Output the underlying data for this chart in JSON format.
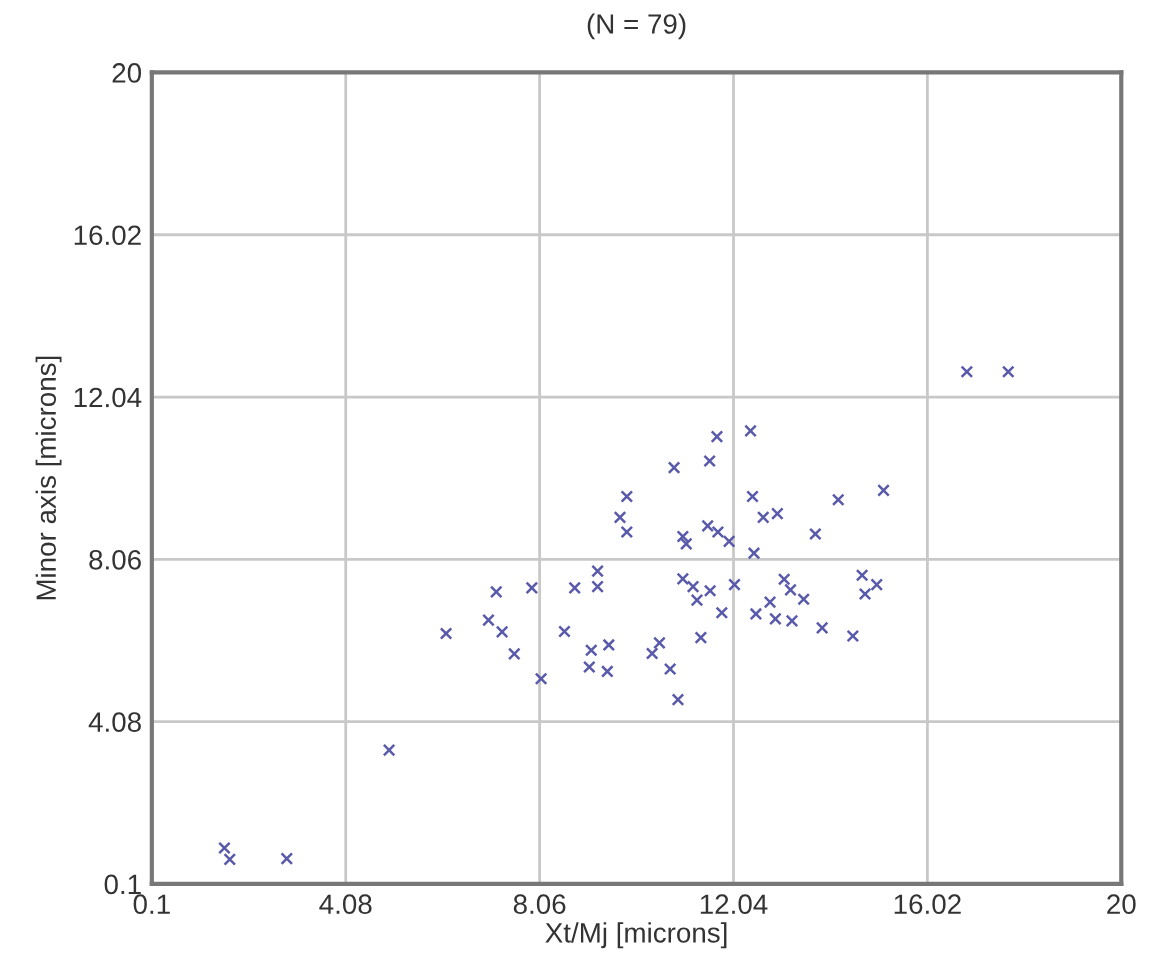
{
  "chart_data": {
    "type": "scatter",
    "title": "(N = 79)",
    "xlabel": "Xt/Mj [microns]",
    "ylabel": "Minor axis [microns]",
    "xlim": [
      0.1,
      20
    ],
    "ylim": [
      0.1,
      20
    ],
    "xticks": [
      0.1,
      4.08,
      8.06,
      12.04,
      16.02,
      20
    ],
    "yticks": [
      0.1,
      4.08,
      8.06,
      12.04,
      16.02,
      20
    ],
    "grid": true,
    "marker": "cross",
    "series": [
      {
        "color": "#5a5aaa",
        "x": [
          1.59,
          1.7,
          2.87,
          4.97,
          6.14,
          7.17,
          7.9,
          7.01,
          7.29,
          7.54,
          8.09,
          8.57,
          8.78,
          9.25,
          9.25,
          9.12,
          9.48,
          9.08,
          9.45,
          11.7,
          12.39,
          10.82,
          11.55,
          9.85,
          9.71,
          9.85,
          11.0,
          11.07,
          11.51,
          11.72,
          11.95,
          12.43,
          12.65,
          12.94,
          14.19,
          15.12,
          13.72,
          12.46,
          11.0,
          11.21,
          11.56,
          11.29,
          12.06,
          11.8,
          11.37,
          12.5,
          12.79,
          12.9,
          13.24,
          13.08,
          13.21,
          13.48,
          13.86,
          14.49,
          14.68,
          14.74,
          14.98,
          10.52,
          10.37,
          10.74,
          10.9,
          16.83,
          17.68
        ],
        "values": [
          0.98,
          0.7,
          0.72,
          3.38,
          6.24,
          7.26,
          7.36,
          6.57,
          6.28,
          5.74,
          5.13,
          6.29,
          7.36,
          7.77,
          7.39,
          5.83,
          5.96,
          5.42,
          5.31,
          11.07,
          11.21,
          10.31,
          10.47,
          9.6,
          9.09,
          8.73,
          8.62,
          8.44,
          8.88,
          8.73,
          8.5,
          9.6,
          9.09,
          9.18,
          9.52,
          9.75,
          8.68,
          8.21,
          7.58,
          7.39,
          7.29,
          7.06,
          7.44,
          6.75,
          6.14,
          6.72,
          7.01,
          6.6,
          6.55,
          7.57,
          7.31,
          7.08,
          6.38,
          6.18,
          7.67,
          7.21,
          7.44,
          6.01,
          5.75,
          5.37,
          4.62,
          12.66,
          12.66
        ]
      }
    ]
  }
}
